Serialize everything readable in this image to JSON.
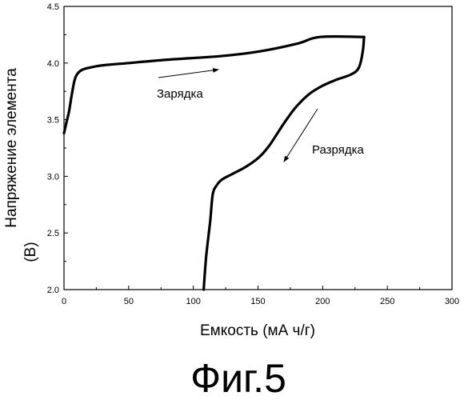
{
  "chart_data": {
    "type": "line",
    "title": "",
    "xlabel": "Емкость (мА ч/г)",
    "ylabel_line1": "Напряжение элемента",
    "ylabel_line2": "(В)",
    "xlim": [
      0,
      300
    ],
    "ylim": [
      2.0,
      4.5
    ],
    "xticks": [
      0,
      50,
      100,
      150,
      200,
      250,
      300
    ],
    "yticks": [
      2.0,
      2.5,
      3.0,
      3.5,
      4.0,
      4.5
    ],
    "grid": false,
    "series": [
      {
        "name": "Зарядка",
        "x": [
          0,
          2,
          4,
          6,
          8,
          10,
          14,
          20,
          30,
          50,
          80,
          120,
          150,
          180,
          198,
          232
        ],
        "y": [
          3.38,
          3.48,
          3.58,
          3.72,
          3.84,
          3.9,
          3.94,
          3.96,
          3.98,
          4.0,
          4.03,
          4.06,
          4.1,
          4.17,
          4.23,
          4.23
        ]
      },
      {
        "name": "Разрядка",
        "x": [
          232,
          231,
          228,
          222,
          210,
          200,
          190,
          180,
          172,
          165,
          158,
          150,
          140,
          130,
          122,
          118,
          115,
          113,
          110,
          108
        ],
        "y": [
          4.23,
          4.1,
          3.96,
          3.9,
          3.85,
          3.8,
          3.73,
          3.62,
          3.5,
          3.38,
          3.26,
          3.16,
          3.08,
          3.02,
          2.97,
          2.92,
          2.84,
          2.6,
          2.3,
          2.0
        ]
      }
    ],
    "annotations": {
      "charge_label": "Зарядка",
      "discharge_label": "Разрядка"
    }
  },
  "figure_caption": "Фиг.5"
}
